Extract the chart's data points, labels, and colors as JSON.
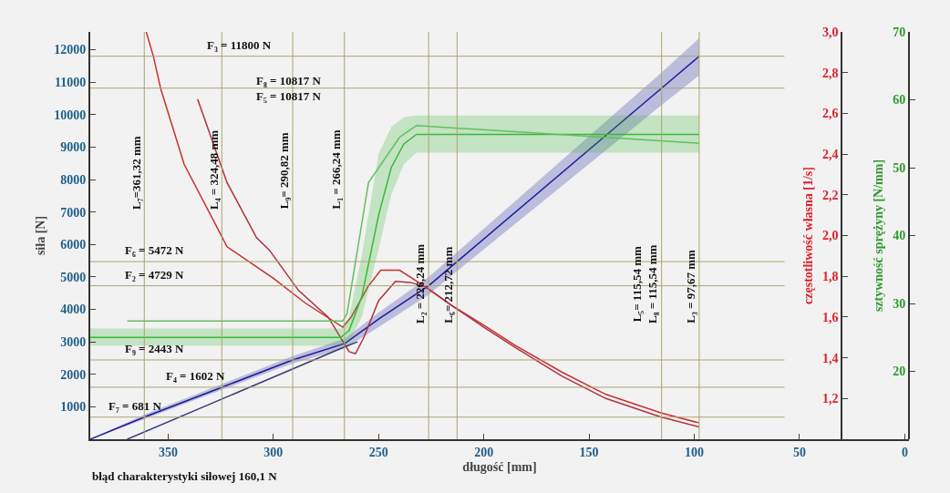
{
  "chart_data": {
    "type": "line",
    "xlabel": "długość [mm]",
    "ylabel": "siła [N]",
    "y2label": "częstotliwość własna [1/s]",
    "y3label": "sztywność sprężyny [N/mm]",
    "xlim": [
      387,
      -2
    ],
    "xticks": [
      350,
      300,
      250,
      200,
      150,
      100,
      50,
      0
    ],
    "ylim": [
      0,
      12550
    ],
    "yticks": [
      1000,
      2000,
      3000,
      4000,
      5000,
      6000,
      7000,
      8000,
      9000,
      10000,
      11000,
      12000
    ],
    "y2lim": [
      1.0,
      3.0
    ],
    "y2ticks": [
      {
        "value": 1.2,
        "label": "1,2"
      },
      {
        "value": 1.4,
        "label": "1,4"
      },
      {
        "value": 1.6,
        "label": "1,6"
      },
      {
        "value": 1.8,
        "label": "1,8"
      },
      {
        "value": 2.0,
        "label": "2,0"
      },
      {
        "value": 2.2,
        "label": "2,2"
      },
      {
        "value": 2.4,
        "label": "2,4"
      },
      {
        "value": 2.6,
        "label": "2,6"
      },
      {
        "value": 2.8,
        "label": "2,8"
      },
      {
        "value": 3.0,
        "label": "3,0"
      }
    ],
    "y3lim": [
      10,
      70
    ],
    "y3ticks": [
      20,
      30,
      40,
      50,
      60,
      70
    ],
    "grid": false,
    "marker": "none",
    "line_style": "solid",
    "series": [
      {
        "color": "#1c1c9c",
        "x": [
          387,
          361.32,
          324.48,
          290.82,
          266,
          250,
          226.24,
          212.72,
          115.54,
          97.67
        ],
        "values": [
          0,
          681,
          1602,
          2443,
          2950,
          3700,
          4729,
          5472,
          10817,
          11800
        ],
        "lower": [
          0,
          620,
          1520,
          2340,
          2800,
          3450,
          4450,
          5180,
          10300,
          11210
        ],
        "upper": [
          0,
          760,
          1700,
          2560,
          3100,
          3900,
          5000,
          5760,
          11300,
          12360
        ]
      },
      {
        "color": "#3a3a7a",
        "x": [
          369.4,
          266,
          260
        ],
        "values": [
          0,
          2850,
          3000
        ]
      },
      {
        "axis": "y3",
        "color": "#38b838",
        "x": [
          387,
          268,
          264,
          258,
          250,
          244,
          238,
          232,
          97.67
        ],
        "values": [
          25.0,
          25.0,
          26,
          31,
          43,
          50,
          53.5,
          54.9,
          54.9
        ],
        "lower": [
          23.8,
          23.8,
          24.3,
          28,
          38,
          46,
          50.5,
          52.2,
          52.2
        ],
        "upper": [
          26.3,
          26.3,
          28,
          37,
          52,
          56,
          57.4,
          57.7,
          57.7
        ]
      },
      {
        "axis": "y3",
        "color": "#60c060",
        "x": [
          369.4,
          267,
          265,
          254.8,
          240,
          232,
          97.67
        ],
        "values": [
          27.4,
          27.4,
          28.5,
          47.8,
          54.5,
          56.2,
          53.6
        ]
      },
      {
        "axis": "y2",
        "color": "#c83030",
        "x": [
          360.4,
          357,
          353.5,
          342.4,
          326.5,
          322,
          300,
          285,
          267,
          263,
          255,
          249,
          240,
          228,
          215,
          200,
          185,
          163,
          142,
          116,
          97.67
        ],
        "values": [
          3.0,
          2.88,
          2.72,
          2.35,
          2.035,
          1.945,
          1.79,
          1.67,
          1.55,
          1.6,
          1.75,
          1.83,
          1.83,
          1.75,
          1.655,
          1.56,
          1.46,
          1.33,
          1.22,
          1.13,
          1.08
        ]
      },
      {
        "axis": "y2",
        "color": "#b03040",
        "x": [
          336,
          322,
          308,
          302,
          288,
          274,
          264,
          261,
          257,
          250,
          242,
          235,
          228,
          215,
          200,
          185,
          163,
          142,
          116,
          97.67
        ],
        "values": [
          2.67,
          2.26,
          1.99,
          1.93,
          1.73,
          1.6,
          1.43,
          1.42,
          1.5,
          1.68,
          1.775,
          1.77,
          1.75,
          1.655,
          1.55,
          1.45,
          1.31,
          1.2,
          1.11,
          1.06
        ]
      }
    ],
    "ref_lines": [
      {
        "axis": "y",
        "value": 11800,
        "label": "F₃ = 11800 N",
        "color": "#aaa470"
      },
      {
        "axis": "y",
        "value": 10817,
        "label": "F₈ = 10817 N\nF₅ = 10817 N",
        "color": "#aaa470"
      },
      {
        "axis": "y",
        "value": 5472,
        "label": "F₆ = 5472 N",
        "color": "#aaa470"
      },
      {
        "axis": "y",
        "value": 4729,
        "label": "F₂ = 4729 N",
        "color": "#aaa470"
      },
      {
        "axis": "y",
        "value": 2443,
        "label": "F₉ = 2443 N",
        "color": "#aaa470"
      },
      {
        "axis": "y",
        "value": 1602,
        "label": "F₄ = 1602 N",
        "color": "#aaa470"
      },
      {
        "axis": "y",
        "value": 681,
        "label": "F₇ = 681 N",
        "color": "#aaa470"
      },
      {
        "axis": "x",
        "value": 361.32,
        "label": "L₇=361,32 mm",
        "color": "#aaa470"
      },
      {
        "axis": "x",
        "value": 324.48,
        "label": "L₄ = 324,48 mm",
        "color": "#aaa470"
      },
      {
        "axis": "x",
        "value": 290.82,
        "label": "L₉= 290,82 mm",
        "color": "#aaa470"
      },
      {
        "axis": "x",
        "value": 266.24,
        "label": "L₁ = 266,24 mm",
        "color": "#aaa470"
      },
      {
        "axis": "x",
        "value": 226.24,
        "label": "L₂ = 226,24 mm",
        "color": "#aaa470"
      },
      {
        "axis": "x",
        "value": 212.72,
        "label": "L₆= 212,72 mm",
        "color": "#aaa470"
      },
      {
        "axis": "x",
        "value": 115.54,
        "label": "L₅= 115,54 mm\nL₈ = 115,54 mm",
        "color": "#aaa470"
      },
      {
        "axis": "x",
        "value": 97.67,
        "label": "L₃ = 97,67 mm",
        "color": "#aaa470"
      }
    ],
    "annotations": [
      "błąd charakterystyki siłowej 160,1 N"
    ]
  }
}
